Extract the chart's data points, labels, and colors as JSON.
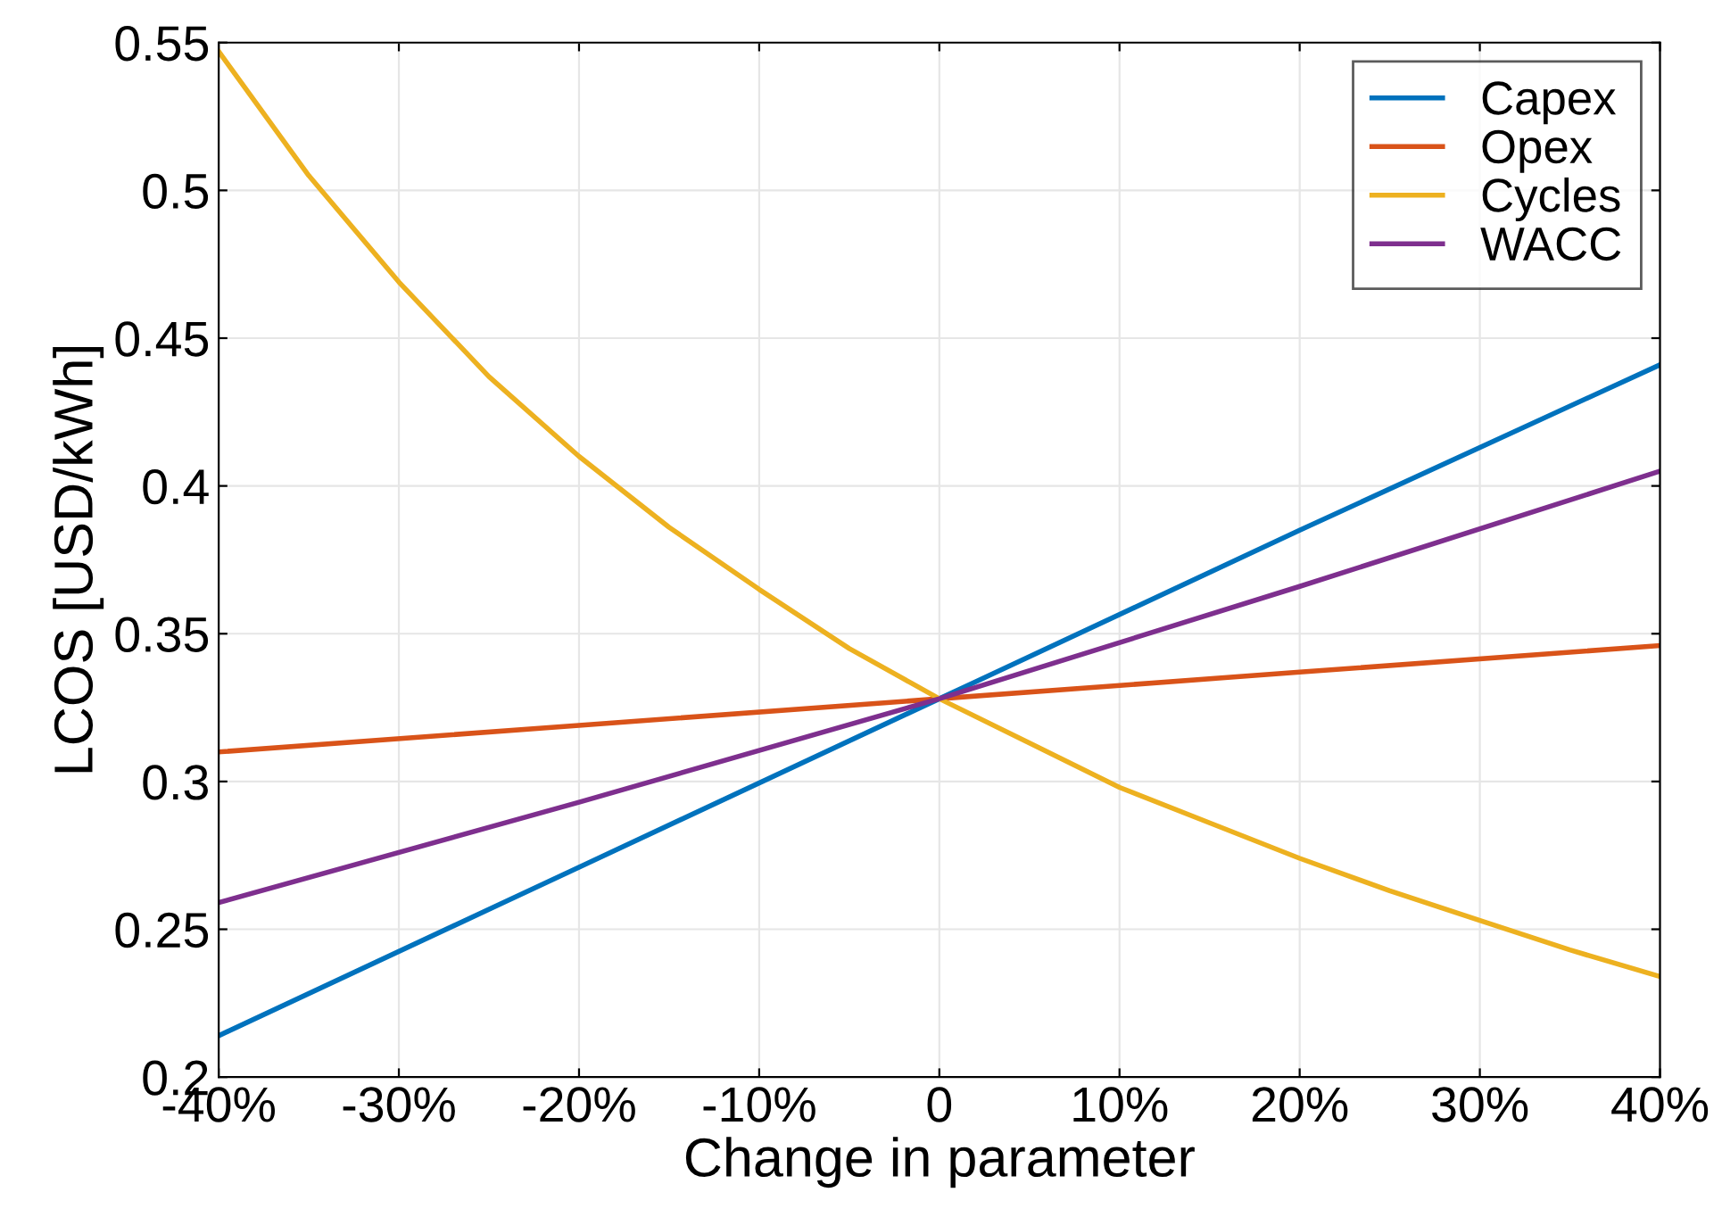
{
  "chart_data": {
    "type": "line",
    "xlabel": "Change in parameter",
    "ylabel": "LCOS [USD/kWh]",
    "xlim": [
      -40,
      40
    ],
    "ylim": [
      0.2,
      0.55
    ],
    "xticks": [
      {
        "value": -40,
        "label": "-40%"
      },
      {
        "value": -30,
        "label": "-30%"
      },
      {
        "value": -20,
        "label": "-20%"
      },
      {
        "value": -10,
        "label": "-10%"
      },
      0,
      {
        "value": 10,
        "label": "10%"
      },
      {
        "value": 20,
        "label": "20%"
      },
      {
        "value": 30,
        "label": "30%"
      },
      {
        "value": 40,
        "label": "40%"
      }
    ],
    "yticks": [
      0.2,
      0.25,
      0.3,
      0.35,
      0.4,
      0.45,
      0.5,
      0.55
    ],
    "grid": true,
    "legend": "top right",
    "marker": "none",
    "line_style": "solid",
    "series": [
      {
        "name": "Capex",
        "color": "#0072bd",
        "x": [
          -40,
          -20,
          0,
          20,
          40
        ],
        "values": [
          0.214,
          0.271,
          0.328,
          0.385,
          0.441
        ]
      },
      {
        "name": "Opex",
        "color": "#d95319",
        "x": [
          -40,
          -20,
          0,
          20,
          40
        ],
        "values": [
          0.31,
          0.319,
          0.328,
          0.337,
          0.346
        ]
      },
      {
        "name": "Cycles",
        "color": "#edb120",
        "x": [
          -40,
          -35,
          -30,
          -25,
          -20,
          -15,
          -10,
          -5,
          0,
          5,
          10,
          15,
          20,
          25,
          30,
          35,
          40
        ],
        "values": [
          0.547,
          0.505,
          0.469,
          0.437,
          0.41,
          0.386,
          0.365,
          0.345,
          0.328,
          0.313,
          0.298,
          0.286,
          0.274,
          0.263,
          0.253,
          0.243,
          0.234
        ]
      },
      {
        "name": "WACC",
        "color": "#7e2f8e",
        "x": [
          -40,
          -20,
          0,
          20,
          40
        ],
        "values": [
          0.259,
          0.293,
          0.328,
          0.366,
          0.405
        ]
      }
    ]
  }
}
